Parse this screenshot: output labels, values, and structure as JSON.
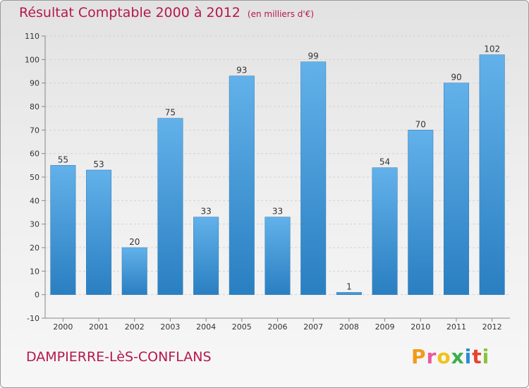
{
  "title": "Résultat Comptable 2000 à 2012",
  "subtitle": "(en milliers d'€)",
  "commune": "DAMPIERRE-LèS-CONFLANS",
  "logo": {
    "letters": [
      "P",
      "r",
      "o",
      "x",
      "i",
      "t",
      "i"
    ],
    "colors": [
      "#f29a1a",
      "#e85a9b",
      "#f2c21a",
      "#3ab04a",
      "#2b8ad8",
      "#e8442e",
      "#8ac43a"
    ]
  },
  "colors": {
    "bar_top": "#62b1ea",
    "bar_bottom": "#2a7fc1",
    "grid": "#d2d2d2",
    "axis_text": "#333333",
    "title": "#b5184b"
  },
  "chart_data": {
    "type": "bar",
    "categories": [
      "2000",
      "2001",
      "2002",
      "2003",
      "2004",
      "2005",
      "2006",
      "2007",
      "2008",
      "2009",
      "2010",
      "2011",
      "2012"
    ],
    "values": [
      55,
      53,
      20,
      75,
      33,
      93,
      33,
      99,
      1,
      54,
      70,
      90,
      102
    ],
    "ylim": [
      -10,
      110
    ],
    "yticks": [
      -10,
      0,
      10,
      20,
      30,
      40,
      50,
      60,
      70,
      80,
      90,
      100,
      110
    ],
    "grid": true,
    "grid_style": "dashed-horizontal"
  }
}
